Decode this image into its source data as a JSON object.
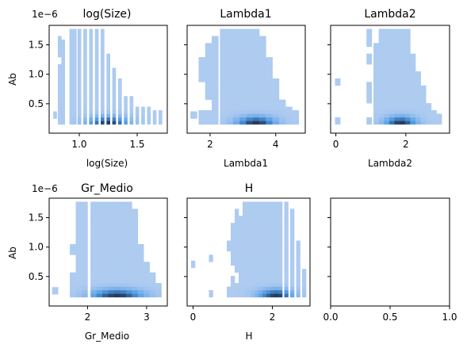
{
  "chart_data": {
    "type": "heatmap",
    "description_kind": "2D histogram grid (1e-6 y offset on left column)",
    "colors": {
      "low": "#aecbf0",
      "mid": "#4f9be6",
      "high": "#23395d",
      "empty": "#ffffff"
    },
    "panels": [
      {
        "title": "log(Size)",
        "xlabel": "log(Size)",
        "ylabel": "Ab",
        "y_offset_label": "1e−6",
        "show_y_ticklabels": true,
        "xlim": [
          0.74,
          1.76
        ],
        "ylim": [
          0.0,
          1.83
        ],
        "xticks": [
          1.0,
          1.5
        ],
        "xticklabels": [
          "1.0",
          "1.5"
        ],
        "yticks": [
          0.5,
          1.0,
          1.5
        ],
        "yticklabels": [
          "0.5",
          "1.0",
          "1.5"
        ],
        "xbins": {
          "start": 0.78,
          "end": 1.72,
          "n": 29
        },
        "ybins": {
          "start": 0.1,
          "end": 1.75,
          "n": 28
        },
        "columns": [
          {
            "x": 0.79,
            "top": 0.35,
            "bottom": 0.25
          },
          {
            "x": 0.83,
            "top": 1.6,
            "bottom": 0.15,
            "gaps": [
              [
                1.2,
                1.3
              ]
            ]
          },
          {
            "x": 0.86,
            "top": 1.55,
            "bottom": 0.15
          },
          {
            "x": 0.93,
            "top": 1.75,
            "bottom": 0.15
          },
          {
            "x": 0.96,
            "top": 1.75,
            "bottom": 0.15
          },
          {
            "x": 1.0,
            "top": 1.75,
            "bottom": 0.15
          },
          {
            "x": 1.05,
            "top": 1.75,
            "bottom": 0.15
          },
          {
            "x": 1.1,
            "top": 1.75,
            "bottom": 0.15
          },
          {
            "x": 1.15,
            "top": 1.75,
            "bottom": 0.15
          },
          {
            "x": 1.2,
            "top": 1.75,
            "bottom": 0.15
          },
          {
            "x": 1.25,
            "top": 1.35,
            "bottom": 0.15
          },
          {
            "x": 1.3,
            "top": 1.1,
            "bottom": 0.15
          },
          {
            "x": 1.35,
            "top": 0.9,
            "bottom": 0.15
          },
          {
            "x": 1.4,
            "top": 0.6,
            "bottom": 0.15
          },
          {
            "x": 1.45,
            "top": 0.6,
            "bottom": 0.15
          },
          {
            "x": 1.5,
            "top": 0.45,
            "bottom": 0.15
          },
          {
            "x": 1.55,
            "top": 0.4,
            "bottom": 0.15
          },
          {
            "x": 1.6,
            "top": 0.4,
            "bottom": 0.15
          },
          {
            "x": 1.65,
            "top": 0.35,
            "bottom": 0.15
          },
          {
            "x": 1.7,
            "top": 0.35,
            "bottom": 0.15
          }
        ],
        "hotspot": {
          "x": 1.25,
          "y": 0.17,
          "sx": 0.12,
          "sy": 0.08
        }
      },
      {
        "title": "Lambda1",
        "xlabel": "Lambda1",
        "ylabel": "",
        "y_offset_label": "",
        "show_y_ticklabels": false,
        "xlim": [
          1.3,
          4.9
        ],
        "ylim": [
          0.0,
          1.83
        ],
        "xticks": [
          2,
          4
        ],
        "xticklabels": [
          "2",
          "4"
        ],
        "yticks": [
          0.5,
          1.0,
          1.5
        ],
        "yticklabels": [
          "",
          "",
          ""
        ],
        "columns": [
          {
            "x": 1.5,
            "top": 0.35,
            "bottom": 0.25
          },
          {
            "x": 1.75,
            "top": 1.25,
            "bottom": 0.15,
            "gaps": [
              [
                0.4,
                0.9
              ]
            ]
          },
          {
            "x": 1.95,
            "top": 1.5,
            "bottom": 0.15,
            "gaps": [
              [
                0.4,
                0.55
              ]
            ]
          },
          {
            "x": 2.15,
            "top": 1.6,
            "bottom": 0.15
          },
          {
            "x": 2.4,
            "top": 1.75,
            "bottom": 0.15
          },
          {
            "x": 2.6,
            "top": 1.75,
            "bottom": 0.15
          },
          {
            "x": 2.8,
            "top": 1.75,
            "bottom": 0.15
          },
          {
            "x": 3.0,
            "top": 1.75,
            "bottom": 0.15
          },
          {
            "x": 3.2,
            "top": 1.75,
            "bottom": 0.15
          },
          {
            "x": 3.4,
            "top": 1.75,
            "bottom": 0.15
          },
          {
            "x": 3.6,
            "top": 1.6,
            "bottom": 0.15
          },
          {
            "x": 3.8,
            "top": 1.25,
            "bottom": 0.15
          },
          {
            "x": 4.0,
            "top": 0.9,
            "bottom": 0.15
          },
          {
            "x": 4.2,
            "top": 0.55,
            "bottom": 0.15
          },
          {
            "x": 4.4,
            "top": 0.4,
            "bottom": 0.15
          },
          {
            "x": 4.6,
            "top": 0.35,
            "bottom": 0.15
          }
        ],
        "hotspot": {
          "x": 3.4,
          "y": 0.17,
          "sx": 0.4,
          "sy": 0.08
        }
      },
      {
        "title": "Lambda2",
        "xlabel": "Lambda2",
        "ylabel": "",
        "y_offset_label": "",
        "show_y_ticklabels": false,
        "xlim": [
          -0.15,
          3.25
        ],
        "ylim": [
          0.0,
          1.83
        ],
        "xticks": [
          0,
          2
        ],
        "xticklabels": [
          "0",
          "2"
        ],
        "yticks": [
          0.5,
          1.0,
          1.5
        ],
        "yticklabels": [
          "",
          "",
          ""
        ],
        "columns": [
          {
            "x": 0.05,
            "top": 0.9,
            "bottom": 0.15,
            "gaps": [
              [
                0.25,
                0.8
              ]
            ]
          },
          {
            "x": 0.95,
            "top": 1.75,
            "bottom": 0.15,
            "gaps": [
              [
                0.25,
                0.5
              ],
              [
                0.9,
                1.15
              ],
              [
                1.35,
                1.5
              ]
            ]
          },
          {
            "x": 1.15,
            "top": 1.5,
            "bottom": 0.15
          },
          {
            "x": 1.3,
            "top": 1.75,
            "bottom": 0.15
          },
          {
            "x": 1.45,
            "top": 1.75,
            "bottom": 0.15
          },
          {
            "x": 1.6,
            "top": 1.75,
            "bottom": 0.15
          },
          {
            "x": 1.75,
            "top": 1.75,
            "bottom": 0.15
          },
          {
            "x": 1.9,
            "top": 1.75,
            "bottom": 0.15
          },
          {
            "x": 2.05,
            "top": 1.75,
            "bottom": 0.15
          },
          {
            "x": 2.2,
            "top": 1.35,
            "bottom": 0.15
          },
          {
            "x": 2.35,
            "top": 1.0,
            "bottom": 0.15
          },
          {
            "x": 2.5,
            "top": 0.8,
            "bottom": 0.15
          },
          {
            "x": 2.65,
            "top": 0.5,
            "bottom": 0.15
          },
          {
            "x": 2.8,
            "top": 0.35,
            "bottom": 0.15
          },
          {
            "x": 2.95,
            "top": 0.3,
            "bottom": 0.15
          }
        ],
        "hotspot": {
          "x": 1.85,
          "y": 0.17,
          "sx": 0.3,
          "sy": 0.08
        }
      },
      {
        "title": "Gr_Medio",
        "xlabel": "Gr_Medio",
        "ylabel": "Ab",
        "y_offset_label": "1e−6",
        "show_y_ticklabels": true,
        "xlim": [
          1.35,
          3.35
        ],
        "ylim": [
          0.0,
          1.83
        ],
        "xticks": [
          2,
          3
        ],
        "xticklabels": [
          "2",
          "3"
        ],
        "yticks": [
          0.5,
          1.0,
          1.5
        ],
        "yticklabels": [
          "0.5",
          "1.0",
          "1.5"
        ],
        "columns": [
          {
            "x": 1.45,
            "top": 0.3,
            "bottom": 0.2
          },
          {
            "x": 1.75,
            "top": 1.05,
            "bottom": 0.15,
            "gaps": [
              [
                0.55,
                0.85
              ]
            ]
          },
          {
            "x": 1.85,
            "top": 1.75,
            "bottom": 0.15
          },
          {
            "x": 1.95,
            "top": 1.75,
            "bottom": 0.15
          },
          {
            "x": 2.1,
            "top": 1.75,
            "bottom": 0.15
          },
          {
            "x": 2.2,
            "top": 1.75,
            "bottom": 0.15
          },
          {
            "x": 2.3,
            "top": 1.75,
            "bottom": 0.15
          },
          {
            "x": 2.4,
            "top": 1.75,
            "bottom": 0.15
          },
          {
            "x": 2.5,
            "top": 1.75,
            "bottom": 0.15
          },
          {
            "x": 2.6,
            "top": 1.75,
            "bottom": 0.15
          },
          {
            "x": 2.7,
            "top": 1.75,
            "bottom": 0.15
          },
          {
            "x": 2.8,
            "top": 1.6,
            "bottom": 0.15
          },
          {
            "x": 2.9,
            "top": 1.0,
            "bottom": 0.15
          },
          {
            "x": 3.0,
            "top": 0.75,
            "bottom": 0.15
          },
          {
            "x": 3.1,
            "top": 0.55,
            "bottom": 0.15
          },
          {
            "x": 3.2,
            "top": 0.35,
            "bottom": 0.15
          }
        ],
        "hotspot": {
          "x": 2.5,
          "y": 0.17,
          "sx": 0.3,
          "sy": 0.08
        }
      },
      {
        "title": "H",
        "xlabel": "H",
        "ylabel": "",
        "y_offset_label": "",
        "show_y_ticklabels": false,
        "xlim": [
          -0.15,
          2.95
        ],
        "ylim": [
          0.0,
          1.83
        ],
        "xticks": [
          0,
          2
        ],
        "xticklabels": [
          "0",
          "2"
        ],
        "yticks": [
          0.5,
          1.0,
          1.5
        ],
        "yticklabels": [
          "",
          "",
          ""
        ],
        "columns": [
          {
            "x": 0.0,
            "top": 0.75,
            "bottom": 0.65
          },
          {
            "x": 0.45,
            "top": 0.85,
            "bottom": 0.15,
            "gaps": [
              [
                0.25,
                0.75
              ]
            ]
          },
          {
            "x": 0.9,
            "top": 1.1,
            "bottom": 0.15,
            "gaps": [
              [
                0.35,
                0.95
              ]
            ]
          },
          {
            "x": 1.0,
            "top": 1.4,
            "bottom": 0.15,
            "gaps": [
              [
                0.5,
                0.7
              ]
            ]
          },
          {
            "x": 1.1,
            "top": 1.65,
            "bottom": 0.15,
            "gaps": [
              [
                0.4,
                0.55
              ]
            ]
          },
          {
            "x": 1.2,
            "top": 1.5,
            "bottom": 0.15
          },
          {
            "x": 1.3,
            "top": 1.75,
            "bottom": 0.15
          },
          {
            "x": 1.4,
            "top": 1.75,
            "bottom": 0.15
          },
          {
            "x": 1.5,
            "top": 1.75,
            "bottom": 0.15
          },
          {
            "x": 1.6,
            "top": 1.75,
            "bottom": 0.15
          },
          {
            "x": 1.7,
            "top": 1.75,
            "bottom": 0.15
          },
          {
            "x": 1.8,
            "top": 1.75,
            "bottom": 0.15
          },
          {
            "x": 1.9,
            "top": 1.75,
            "bottom": 0.15
          },
          {
            "x": 2.0,
            "top": 1.75,
            "bottom": 0.15
          },
          {
            "x": 2.1,
            "top": 1.75,
            "bottom": 0.15
          },
          {
            "x": 2.2,
            "top": 1.75,
            "bottom": 0.15
          },
          {
            "x": 2.35,
            "top": 1.75,
            "bottom": 0.15
          },
          {
            "x": 2.5,
            "top": 1.6,
            "bottom": 0.15
          },
          {
            "x": 2.65,
            "top": 1.1,
            "bottom": 0.15
          },
          {
            "x": 2.8,
            "top": 0.6,
            "bottom": 0.15
          }
        ],
        "hotspot": {
          "x": 2.1,
          "y": 0.17,
          "sx": 0.3,
          "sy": 0.08
        }
      },
      {
        "title": "",
        "xlabel": "",
        "ylabel": "",
        "y_offset_label": "",
        "show_y_ticklabels": false,
        "empty": true,
        "xlim": [
          0.0,
          1.0
        ],
        "ylim": [
          0.0,
          1.83
        ],
        "xticks": [
          0.0,
          0.5,
          1.0
        ],
        "xticklabels": [
          "0.0",
          "0.5",
          "1.0"
        ],
        "yticks": [
          0.5,
          1.0,
          1.5
        ],
        "yticklabels": [
          "",
          "",
          ""
        ],
        "columns": []
      }
    ]
  }
}
